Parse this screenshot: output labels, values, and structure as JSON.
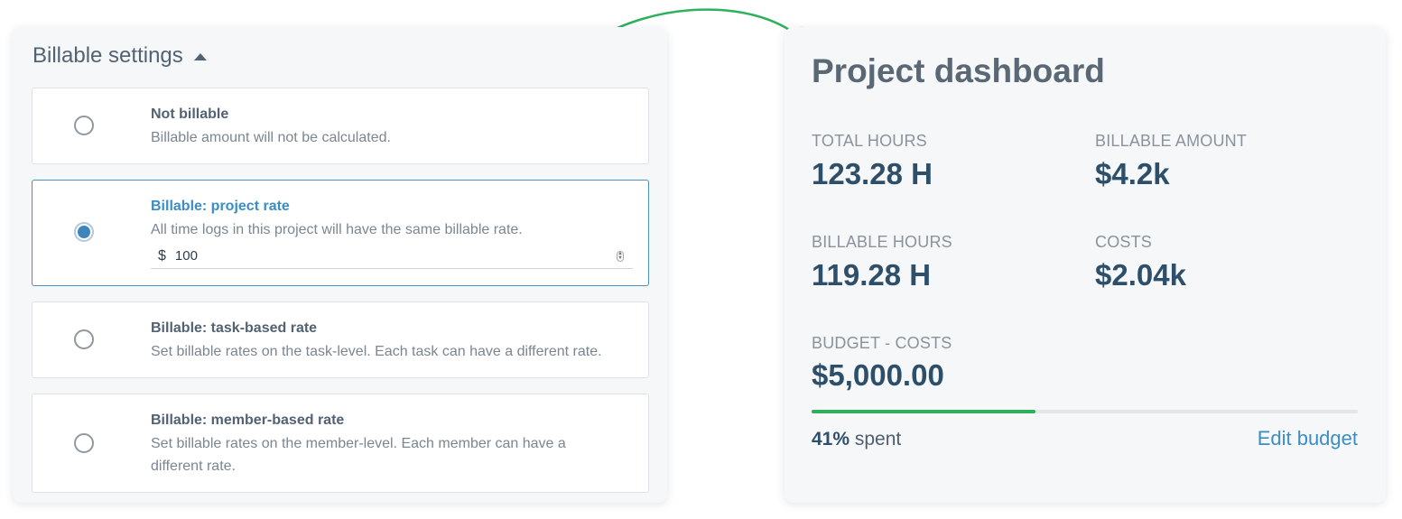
{
  "settings": {
    "title": "Billable settings",
    "options": [
      {
        "title": "Not billable",
        "description": "Billable amount will not be calculated.",
        "selected": false
      },
      {
        "title": "Billable: project rate",
        "description": "All time logs in this project will have the same billable rate.",
        "selected": true,
        "rate_currency": "$",
        "rate_value": "100"
      },
      {
        "title": "Billable: task-based rate",
        "description": "Set billable rates on the task-level. Each task can have a different rate.",
        "selected": false
      },
      {
        "title": "Billable: member-based rate",
        "description": "Set billable rates on the member-level. Each member can have a different rate.",
        "selected": false
      }
    ]
  },
  "dashboard": {
    "title": "Project dashboard",
    "metrics": {
      "total_hours": {
        "label": "TOTAL HOURS",
        "value": "123.28 H"
      },
      "billable_amount": {
        "label": "BILLABLE AMOUNT",
        "value": "$4.2k"
      },
      "billable_hours": {
        "label": "BILLABLE HOURS",
        "value": "119.28 H"
      },
      "costs": {
        "label": "COSTS",
        "value": "$2.04k"
      },
      "budget_costs": {
        "label": "BUDGET - COSTS",
        "value": "$5,000.00"
      }
    },
    "budget_progress": {
      "percent": 41,
      "percent_text": "41%",
      "suffix": " spent"
    },
    "edit_budget_label": "Edit budget"
  },
  "colors": {
    "accent_blue": "#3b8ec4",
    "progress_green": "#2fb15c",
    "arrow_green": "#2fb15c",
    "value_navy": "#2e4f69"
  }
}
